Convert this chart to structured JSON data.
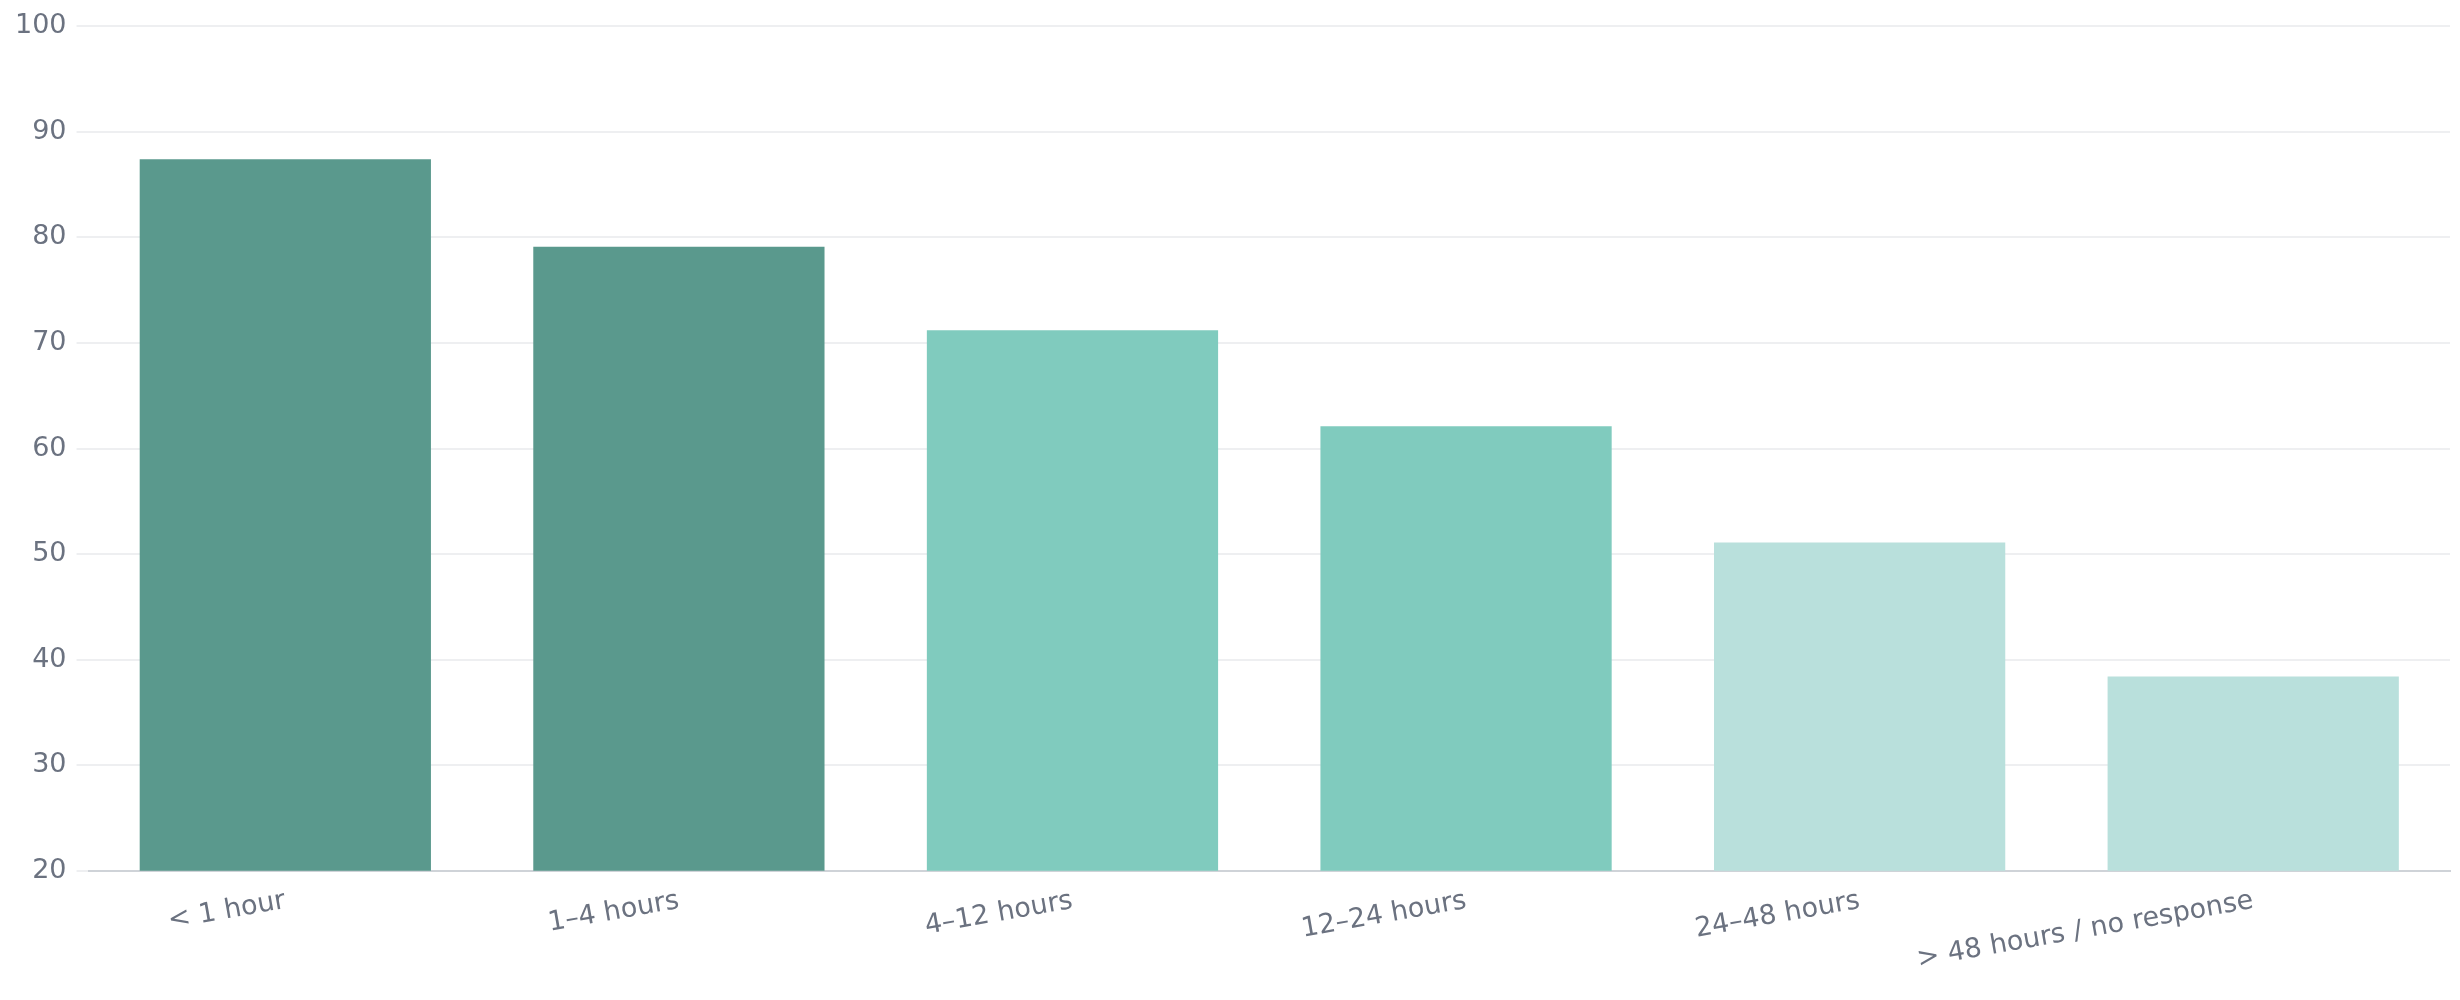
{
  "chart_data": {
    "type": "bar",
    "categories": [
      "< 1 hour",
      "1–4 hours",
      "4–12 hours",
      "12–24 hours",
      "24–48 hours",
      "> 48 hours / no response"
    ],
    "values": [
      87.4,
      79.1,
      71.2,
      62.1,
      51.1,
      38.4
    ],
    "colors": [
      "#5a998d",
      "#5a998d",
      "#80cbbe",
      "#80cbbe",
      "#b9e0dc",
      "#b9e0dc"
    ],
    "ylim": [
      20,
      100
    ],
    "yticks": [
      20,
      30,
      40,
      50,
      60,
      70,
      80,
      90,
      100
    ],
    "grid": "y",
    "legend": false
  }
}
